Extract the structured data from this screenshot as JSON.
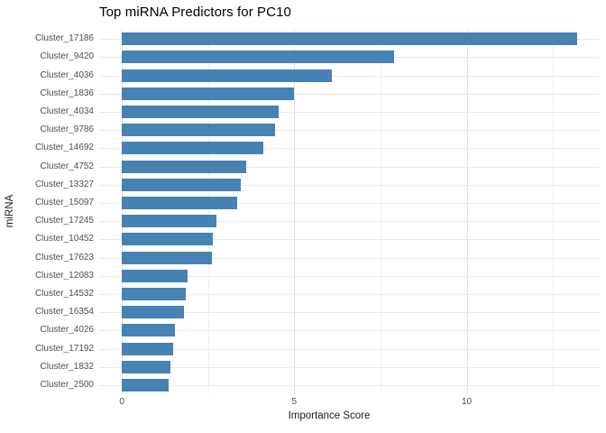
{
  "chart_data": {
    "type": "bar",
    "orientation": "horizontal",
    "title": "Top miRNA Predictors for PC10",
    "xlabel": "Importance Score",
    "ylabel": "miRNA",
    "categories": [
      "Cluster_17186",
      "Cluster_9420",
      "Cluster_4036",
      "Cluster_1836",
      "Cluster_4034",
      "Cluster_9786",
      "Cluster_14692",
      "Cluster_4752",
      "Cluster_13327",
      "Cluster_15097",
      "Cluster_17245",
      "Cluster_10452",
      "Cluster_17623",
      "Cluster_12083",
      "Cluster_14532",
      "Cluster_16354",
      "Cluster_4026",
      "Cluster_17192",
      "Cluster_1832",
      "Cluster_2500"
    ],
    "values": [
      13.2,
      7.9,
      6.1,
      5.0,
      4.55,
      4.45,
      4.1,
      3.6,
      3.45,
      3.35,
      2.75,
      2.65,
      2.6,
      1.9,
      1.85,
      1.8,
      1.55,
      1.5,
      1.4,
      1.35
    ],
    "xticks": [
      0,
      5,
      10
    ],
    "xticks_minor": [
      2.5,
      7.5,
      12.5
    ],
    "xlim": [
      -0.66,
      13.86
    ],
    "bar_color": "#4682B4",
    "grid": true,
    "legend_position": "none",
    "background": "#FFFFFF",
    "tick_label_color": "#4d4d4d",
    "grid_major_color": "#e2e2e2",
    "grid_minor_color": "#f0f0f0"
  }
}
